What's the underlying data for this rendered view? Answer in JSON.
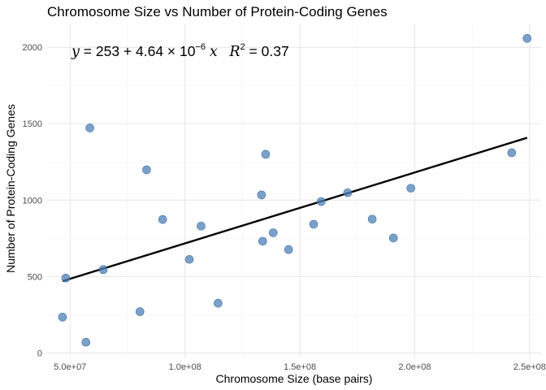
{
  "chart_data": {
    "type": "scatter",
    "title": "Chromosome Size vs Number of Protein-Coding Genes",
    "xlabel": "Chromosome Size (base pairs)",
    "ylabel": "Number of Protein-Coding Genes",
    "xlim": [
      40000000,
      255000000
    ],
    "ylim": [
      -30,
      2150
    ],
    "x_ticks": [
      50000000,
      100000000,
      150000000,
      200000000,
      250000000
    ],
    "x_tick_labels": [
      "5.0e+07",
      "1.0e+08",
      "1.5e+08",
      "2.0e+08",
      "2.5e+08"
    ],
    "y_ticks": [
      0,
      500,
      1000,
      1500,
      2000
    ],
    "y_tick_labels": [
      "0",
      "500",
      "1000",
      "1500",
      "2000"
    ],
    "grid": true,
    "points": [
      {
        "x": 46700000,
        "y": 234
      },
      {
        "x": 48100000,
        "y": 490
      },
      {
        "x": 56900000,
        "y": 70
      },
      {
        "x": 58600000,
        "y": 1472
      },
      {
        "x": 64400000,
        "y": 545
      },
      {
        "x": 80400000,
        "y": 270
      },
      {
        "x": 83300000,
        "y": 1198
      },
      {
        "x": 90300000,
        "y": 873
      },
      {
        "x": 101900000,
        "y": 612
      },
      {
        "x": 107000000,
        "y": 830
      },
      {
        "x": 114400000,
        "y": 325
      },
      {
        "x": 133300000,
        "y": 1034
      },
      {
        "x": 133800000,
        "y": 731
      },
      {
        "x": 135100000,
        "y": 1300
      },
      {
        "x": 138400000,
        "y": 786
      },
      {
        "x": 145100000,
        "y": 676
      },
      {
        "x": 156000000,
        "y": 842
      },
      {
        "x": 159300000,
        "y": 990
      },
      {
        "x": 170800000,
        "y": 1048
      },
      {
        "x": 181500000,
        "y": 875
      },
      {
        "x": 190700000,
        "y": 752
      },
      {
        "x": 198300000,
        "y": 1078
      },
      {
        "x": 242200000,
        "y": 1310
      },
      {
        "x": 248900000,
        "y": 2058
      }
    ],
    "fit": {
      "intercept": 253,
      "slope": 4.64e-06,
      "x_range": [
        46700000,
        248900000
      ]
    },
    "point_color": "#4f81b8",
    "line_color": "#000000",
    "annotation": {
      "y_symbol": "y",
      "equals": "= 253 + 4.64 × 10",
      "exponent": "−6",
      "x_symbol": "x",
      "r_symbol": "R",
      "r_exponent": "2",
      "r_value": "= 0.37"
    }
  }
}
